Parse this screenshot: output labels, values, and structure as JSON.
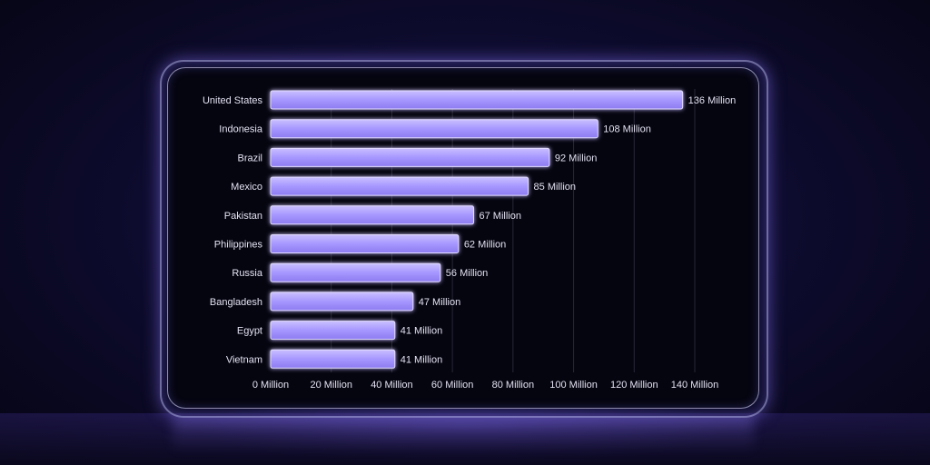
{
  "chart_data": {
    "type": "bar",
    "orientation": "horizontal",
    "categories": [
      "United States",
      "Indonesia",
      "Brazil",
      "Mexico",
      "Pakistan",
      "Philippines",
      "Russia",
      "Bangladesh",
      "Egypt",
      "Vietnam"
    ],
    "values": [
      136,
      108,
      92,
      85,
      67,
      62,
      56,
      47,
      41,
      41
    ],
    "value_labels": [
      "136 Million",
      "108 Million",
      "92 Million",
      "85 Million",
      "67 Million",
      "62 Million",
      "56 Million",
      "47 Million",
      "41 Million",
      "41 Million"
    ],
    "x_ticks": [
      0,
      20,
      40,
      60,
      80,
      100,
      120,
      140
    ],
    "x_tick_labels": [
      "0 Million",
      "20 Million",
      "40 Million",
      "60 Million",
      "80 Million",
      "100 Million",
      "120 Million",
      "140 Million"
    ],
    "xlim": [
      0,
      140
    ],
    "grid": true,
    "bar_color": "#a99bff",
    "title": "",
    "xlabel": "",
    "ylabel": ""
  }
}
